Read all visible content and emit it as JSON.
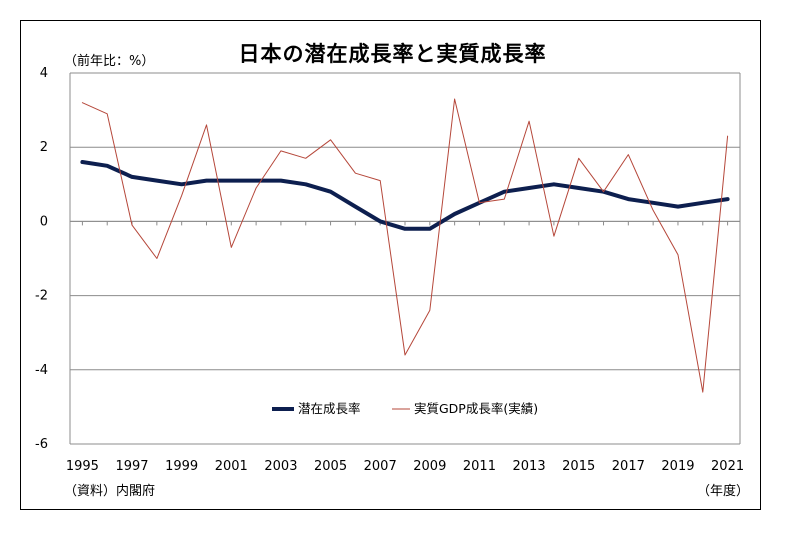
{
  "chart_data": {
    "type": "line",
    "title": "日本の潜在成長率と実質成長率",
    "ylabel": "（前年比：%）",
    "xunit": "（年度）",
    "source": "（資料）内閣府",
    "ylim": [
      -6,
      4
    ],
    "yticks": [
      4,
      2,
      0,
      -2,
      -4,
      -6
    ],
    "xtick_labels": [
      "1995",
      "1997",
      "1999",
      "2001",
      "2003",
      "2005",
      "2007",
      "2009",
      "2011",
      "2013",
      "2015",
      "2017",
      "2019",
      "2021"
    ],
    "x": [
      1995,
      1996,
      1997,
      1998,
      1999,
      2000,
      2001,
      2002,
      2003,
      2004,
      2005,
      2006,
      2007,
      2008,
      2009,
      2010,
      2011,
      2012,
      2013,
      2014,
      2015,
      2016,
      2017,
      2018,
      2019,
      2020,
      2021
    ],
    "grid": true,
    "legend_position": "bottom-center",
    "series": [
      {
        "name": "潜在成長率",
        "color": "#0d1f4f",
        "values": [
          1.6,
          1.5,
          1.2,
          1.1,
          1.0,
          1.1,
          1.1,
          1.1,
          1.1,
          1.0,
          0.8,
          0.4,
          0.0,
          -0.2,
          -0.2,
          0.2,
          0.5,
          0.8,
          0.9,
          1.0,
          0.9,
          0.8,
          0.6,
          0.5,
          0.4,
          0.5,
          0.6
        ]
      },
      {
        "name": "実質GDP成長率(実績)",
        "color": "#b5473a",
        "values": [
          3.2,
          2.9,
          -0.1,
          -1.0,
          0.7,
          2.6,
          -0.7,
          0.9,
          1.9,
          1.7,
          2.2,
          1.3,
          1.1,
          -3.6,
          -2.4,
          3.3,
          0.5,
          0.6,
          2.7,
          -0.4,
          1.7,
          0.8,
          1.8,
          0.3,
          -0.9,
          -4.6,
          2.3
        ]
      }
    ]
  }
}
